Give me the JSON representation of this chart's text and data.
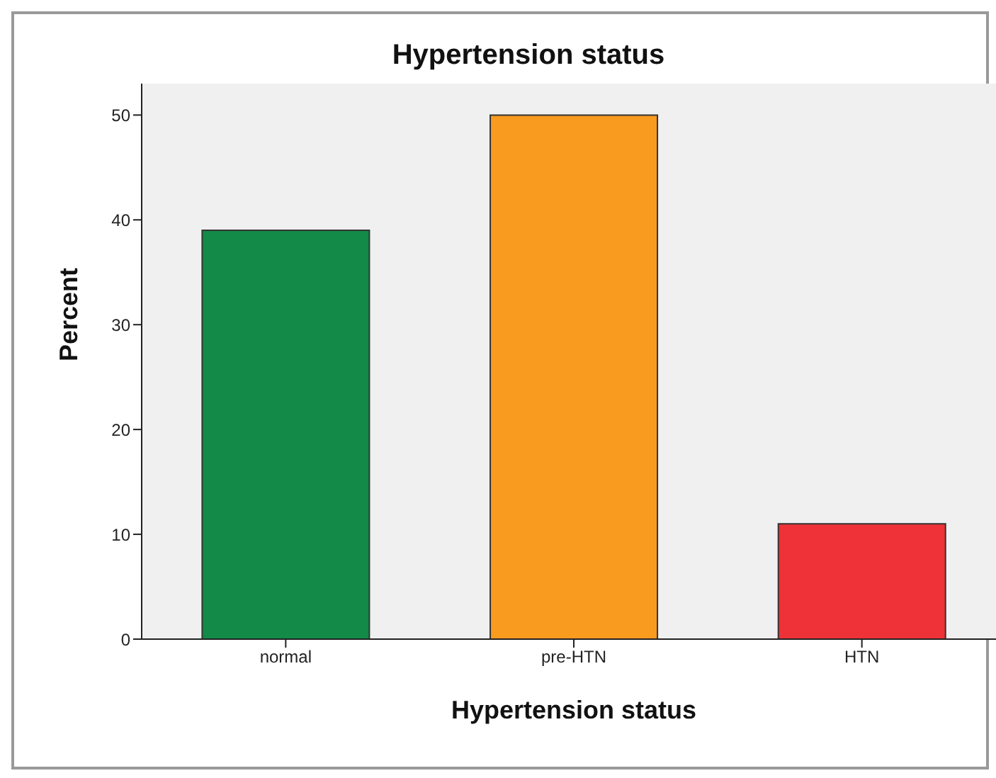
{
  "chart_data": {
    "type": "bar",
    "title": "Hypertension status",
    "xlabel": "Hypertension status",
    "ylabel": "Percent",
    "categories": [
      "normal",
      "pre-HTN",
      "HTN"
    ],
    "values": [
      39,
      50,
      11
    ],
    "colors": [
      "#138a48",
      "#f99b1e",
      "#ee3237"
    ],
    "ylim": [
      0,
      53
    ],
    "yticks": [
      0,
      10,
      20,
      30,
      40,
      50
    ],
    "grid": false,
    "legend": false
  }
}
